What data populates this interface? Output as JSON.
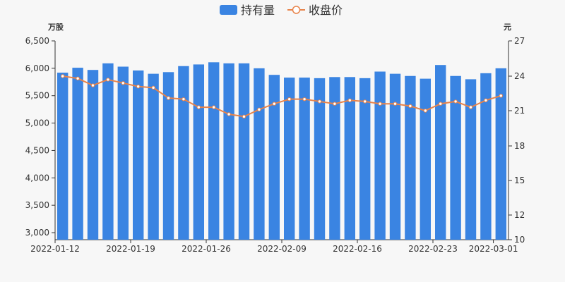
{
  "legend": {
    "bar_label": "持有量",
    "line_label": "收盘价"
  },
  "colors": {
    "bar": "#3a84e2",
    "line": "#e8834a",
    "axis": "#333333",
    "background": "#f7f7f7"
  },
  "chart_data": {
    "type": "bar",
    "title": "",
    "y_left_unit": "万股",
    "y_right_unit": "元",
    "y_left_ticks": [
      "3,000",
      "3,500",
      "4,000",
      "4,500",
      "5,000",
      "5,500",
      "6,000",
      "6,500"
    ],
    "y_right_ticks": [
      "10",
      "12",
      "15",
      "18",
      "21",
      "24",
      "27"
    ],
    "y_left_range": [
      2900,
      6500
    ],
    "y_right_range": [
      10,
      27
    ],
    "x_tick_labels": [
      "2022-01-12",
      "2022-01-19",
      "2022-01-26",
      "2022-02-09",
      "2022-02-16",
      "2022-02-23",
      "2022-03-01"
    ],
    "categories": [
      "2022-01-12",
      "2022-01-13",
      "2022-01-14",
      "2022-01-17",
      "2022-01-18",
      "2022-01-19",
      "2022-01-20",
      "2022-01-21",
      "2022-01-24",
      "2022-01-25",
      "2022-01-26",
      "2022-01-27",
      "2022-01-28",
      "2022-02-07",
      "2022-02-08",
      "2022-02-09",
      "2022-02-10",
      "2022-02-11",
      "2022-02-14",
      "2022-02-15",
      "2022-02-16",
      "2022-02-17",
      "2022-02-18",
      "2022-02-21",
      "2022-02-22",
      "2022-02-23",
      "2022-02-24",
      "2022-02-25",
      "2022-02-28",
      "2022-03-01"
    ],
    "series": [
      {
        "name": "持有量",
        "type": "bar",
        "axis": "left",
        "values": [
          5920,
          6010,
          5970,
          6090,
          6030,
          5960,
          5900,
          5930,
          6040,
          6070,
          6110,
          6090,
          6090,
          6000,
          5880,
          5830,
          5830,
          5820,
          5840,
          5840,
          5820,
          5940,
          5900,
          5860,
          5810,
          6060,
          5860,
          5800,
          5910,
          6000
        ]
      },
      {
        "name": "收盘价",
        "type": "line",
        "axis": "right",
        "values": [
          24.0,
          23.8,
          23.2,
          23.7,
          23.4,
          23.1,
          23.0,
          22.1,
          22.0,
          21.3,
          21.3,
          20.7,
          20.5,
          21.1,
          21.6,
          22.0,
          22.0,
          21.8,
          21.6,
          21.9,
          21.8,
          21.6,
          21.6,
          21.4,
          21.0,
          21.6,
          21.8,
          21.3,
          21.9,
          22.3
        ]
      }
    ]
  }
}
